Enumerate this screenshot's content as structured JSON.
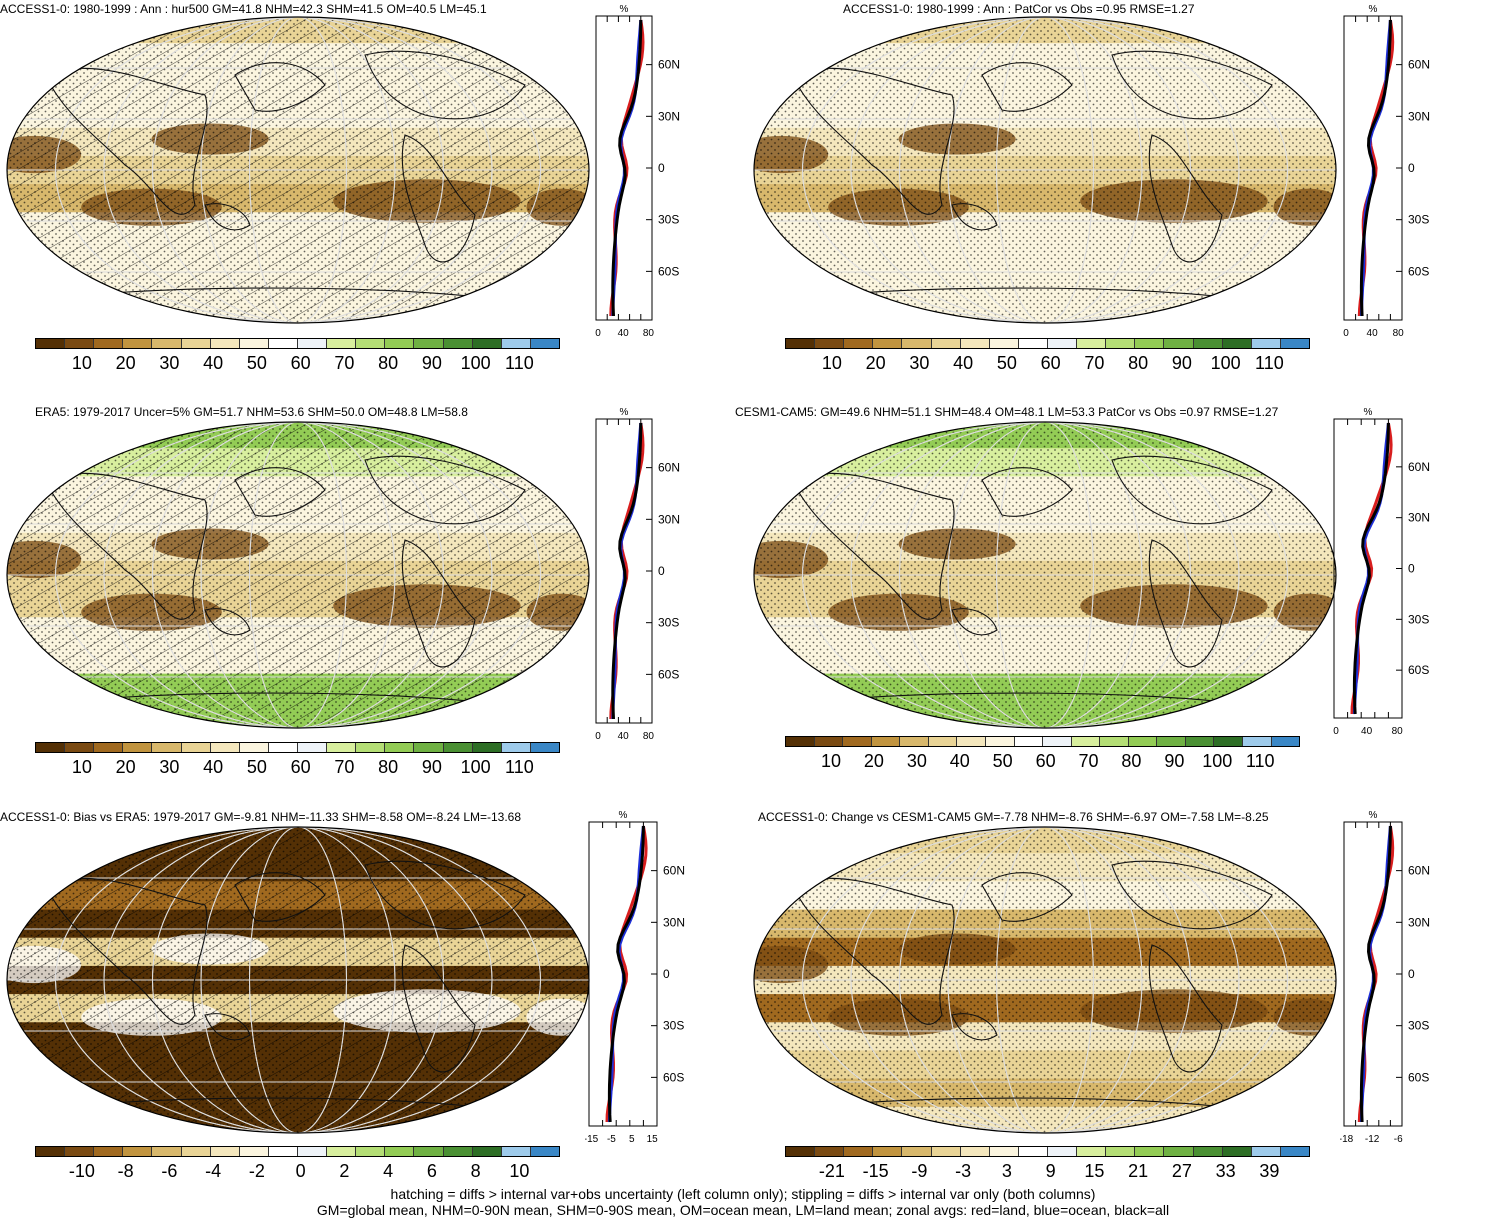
{
  "panels": [
    {
      "id": "p1",
      "title": "ACCESS1-0: 1980-1999 : Ann : hur500 GM=41.8 NHM=42.3 SHM=41.5 OM=40.5 LM=45.1",
      "palette": "humidity",
      "hatch": true,
      "levels": [
        0.35,
        0.5,
        0.45,
        0.5,
        0.4,
        0.3,
        0.25,
        0.5,
        0.45,
        0.5,
        0.5
      ],
      "colorbar_labels": [
        "10",
        "20",
        "30",
        "40",
        "50",
        "60",
        "70",
        "80",
        "90",
        "100",
        "110"
      ],
      "zonal_x_ticks": [
        "0",
        "40",
        "80"
      ],
      "zonal_unit": "%",
      "lat_labels": [
        "60N",
        "30N",
        "0",
        "30S",
        "60S"
      ]
    },
    {
      "id": "p2",
      "title": "ACCESS1-0: 1980-1999 : Ann : PatCor vs Obs =0.95 RMSE=1.27",
      "palette": "humidity",
      "hatch": false,
      "levels": [
        0.35,
        0.5,
        0.45,
        0.5,
        0.4,
        0.3,
        0.25,
        0.5,
        0.45,
        0.5,
        0.5
      ],
      "colorbar_labels": [
        "10",
        "20",
        "30",
        "40",
        "50",
        "60",
        "70",
        "80",
        "90",
        "100",
        "110"
      ],
      "zonal_x_ticks": [
        "0",
        "40",
        "80"
      ],
      "zonal_unit": "%",
      "lat_labels": [
        "60N",
        "30N",
        "0",
        "30S",
        "60S"
      ]
    },
    {
      "id": "p3",
      "title": "ERA5: 1979-2017 Uncer=5% GM=51.7 NHM=53.6 SHM=50.0 OM=48.8 LM=58.8",
      "palette": "humidity",
      "hatch": true,
      "levels": [
        0.7,
        0.6,
        0.5,
        0.55,
        0.4,
        0.3,
        0.3,
        0.55,
        0.45,
        0.7,
        0.75
      ],
      "colorbar_labels": [
        "10",
        "20",
        "30",
        "40",
        "50",
        "60",
        "70",
        "80",
        "90",
        "100",
        "110"
      ],
      "zonal_x_ticks": [
        "0",
        "40",
        "80"
      ],
      "zonal_unit": "%",
      "lat_labels": [
        "60N",
        "30N",
        "0",
        "30S",
        "60S"
      ]
    },
    {
      "id": "p4",
      "title": "CESM1-CAM5: GM=49.6 NHM=51.1 SHM=48.4 OM=48.1 LM=53.3 PatCor vs Obs =0.97 RMSE=1.27",
      "palette": "humidity",
      "hatch": false,
      "levels": [
        0.7,
        0.6,
        0.5,
        0.55,
        0.4,
        0.3,
        0.3,
        0.55,
        0.45,
        0.7,
        0.75
      ],
      "colorbar_labels": [
        "10",
        "20",
        "30",
        "40",
        "50",
        "60",
        "70",
        "80",
        "90",
        "100",
        "110"
      ],
      "zonal_x_ticks": [
        "0",
        "40",
        "80"
      ],
      "zonal_unit": "%",
      "lat_labels": [
        "60N",
        "30N",
        "0",
        "30S",
        "60S"
      ]
    },
    {
      "id": "p5",
      "title": "ACCESS1-0: Bias vs ERA5: 1979-2017 GM=-9.81 NHM=-11.33 SHM=-8.58 OM=-8.24 LM=-13.68",
      "palette": "bias",
      "hatch": true,
      "levels": [
        0.05,
        0.1,
        0.2,
        0.1,
        0.4,
        0.15,
        0.5,
        0.15,
        0.1,
        0.1,
        0.1
      ],
      "colorbar_labels": [
        "-10",
        "-8",
        "-6",
        "-4",
        "-2",
        "0",
        "2",
        "4",
        "6",
        "8",
        "10"
      ],
      "zonal_x_ticks": [
        "-15",
        "-5",
        "5",
        "15"
      ],
      "zonal_unit": "%",
      "lat_labels": [
        "60N",
        "30N",
        "0",
        "30S",
        "60S"
      ]
    },
    {
      "id": "p6",
      "title": "ACCESS1-0: Change vs CESM1-CAM5 GM=-7.78 NHM=-8.76 SHM=-6.97 OM=-7.58 LM=-8.25",
      "palette": "change",
      "hatch": false,
      "levels": [
        0.4,
        0.45,
        0.5,
        0.35,
        0.15,
        0.45,
        0.2,
        0.45,
        0.4,
        0.3,
        0.45
      ],
      "colorbar_labels": [
        "-21",
        "-15",
        "-9",
        "-3",
        "3",
        "9",
        "15",
        "21",
        "27",
        "33",
        "39"
      ],
      "zonal_x_ticks": [
        "-18",
        "-12",
        "-6"
      ],
      "zonal_unit": "%",
      "lat_labels": [
        "60N",
        "30N",
        "0",
        "30S",
        "60S"
      ]
    }
  ],
  "colors": {
    "palette": [
      "#543005",
      "#7a4a12",
      "#a0691f",
      "#c1943f",
      "#d8b86c",
      "#e9d496",
      "#f4e7bd",
      "#fbf5df",
      "#ffffff",
      "#eef3f8",
      "#d8ef9e",
      "#b4de75",
      "#93cc55",
      "#6fb143",
      "#4a9033",
      "#2d6e25",
      "#9ecbeb",
      "#3a87c6"
    ],
    "land": "#d81e1e",
    "ocean": "#1e2fd8",
    "all": "#000000"
  },
  "footer": {
    "line1": "hatching = diffs > internal var+obs uncertainty (left column only); stippling = diffs > internal var only (both columns)",
    "line2": "GM=global mean, NHM=0-90N mean, SHM=0-90S mean, OM=ocean mean, LM=land mean; zonal avgs: red=land, blue=ocean, black=all"
  }
}
